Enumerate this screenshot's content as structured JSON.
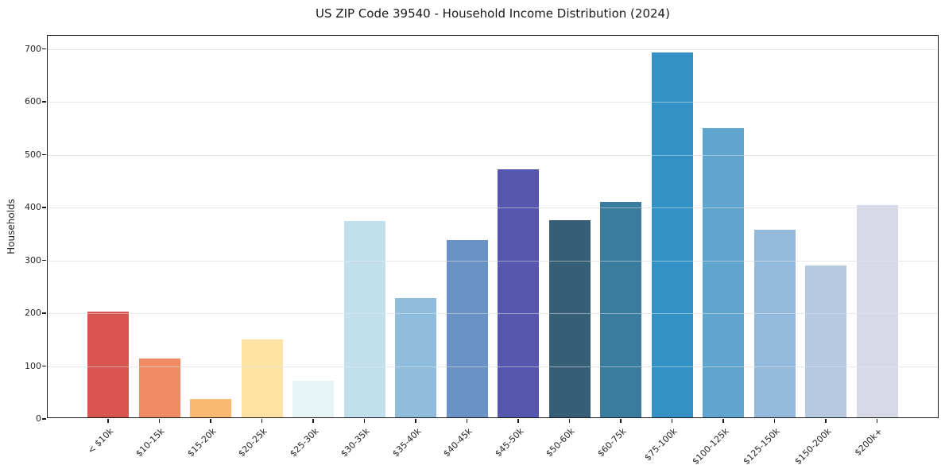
{
  "chart_data": {
    "type": "bar",
    "title": "US ZIP Code 39540 - Household Income Distribution (2024)",
    "xlabel": "",
    "ylabel": "Households",
    "categories": [
      "< $10k",
      "$10-15k",
      "$15-20k",
      "$20-25k",
      "$25-30k",
      "$30-35k",
      "$35-40k",
      "$40-45k",
      "$45-50k",
      "$50-60k",
      "$60-75k",
      "$75-100k",
      "$100-125k",
      "$125-150k",
      "$150-200k",
      "$200k+"
    ],
    "values": [
      200,
      111,
      34,
      148,
      69,
      372,
      225,
      335,
      469,
      373,
      407,
      690,
      548,
      355,
      287,
      402
    ],
    "bar_colors": [
      "#d9534f",
      "#f28a66",
      "#f9b870",
      "#fce3a1",
      "#e6f3f7",
      "#c1e0ec",
      "#8ebcda",
      "#6a92c5",
      "#5457ab",
      "#365f75",
      "#3b7c9e",
      "#3390c5",
      "#5fa5cd",
      "#93bada",
      "#b6c9e1",
      "#d7d9e7"
    ],
    "yticks": [
      0,
      100,
      200,
      300,
      400,
      500,
      600,
      700
    ],
    "ylim": [
      0,
      725
    ],
    "grid": "horizontal",
    "legend_position": "none",
    "xtick_rotation_deg": 45,
    "axis_color": "#1c1c1c",
    "gridline_color": "#e6e6e6"
  }
}
